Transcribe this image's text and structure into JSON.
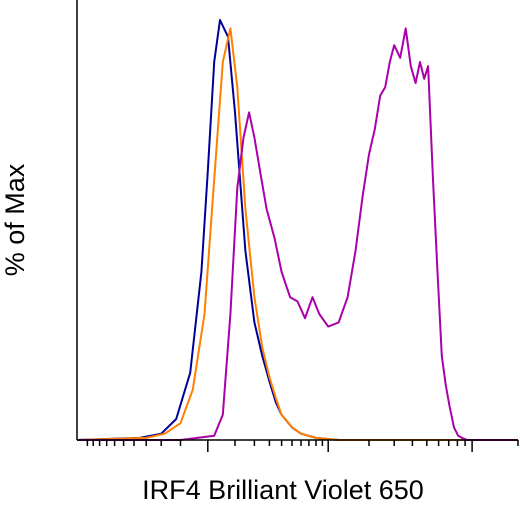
{
  "chart_data": {
    "type": "line",
    "title": "",
    "xlabel": "IRF4 Brilliant Violet 650",
    "ylabel": "% of Max",
    "xscale": "biexponential",
    "ylim": [
      0,
      100
    ],
    "grid": false,
    "legend": "none",
    "x_ticks": {
      "major": [
        0,
        10000,
        100000
      ],
      "minor": [
        -10000,
        -9000,
        -8000,
        -7000,
        -6000,
        -5000,
        -4000,
        -3000,
        -2000,
        -1000,
        1000,
        2000,
        3000,
        4000,
        5000,
        6000,
        7000,
        8000,
        9000,
        20000,
        30000,
        40000,
        50000,
        60000,
        70000,
        80000,
        90000,
        200000
      ]
    },
    "series": [
      {
        "color": "#000099",
        "x": [
          -12000,
          -3500,
          -2000,
          -1200,
          -600,
          -200,
          0,
          200,
          400,
          700,
          1000,
          1500,
          2000,
          2500,
          3000,
          3500,
          4000,
          5000,
          6000,
          8000,
          12000,
          200000
        ],
        "values": [
          0,
          0.5,
          1.5,
          5,
          16,
          40,
          64,
          90,
          100,
          96,
          78,
          45,
          28,
          20,
          14,
          9,
          6,
          3,
          1.5,
          0.5,
          0,
          0
        ]
      },
      {
        "color": "#ff8000",
        "x": [
          -12000,
          -3000,
          -1800,
          -1000,
          -500,
          -100,
          200,
          500,
          800,
          1100,
          1500,
          2000,
          2500,
          3000,
          3500,
          4000,
          5000,
          6000,
          8000,
          12000,
          200000
        ],
        "values": [
          0,
          0.5,
          1.5,
          4,
          12,
          30,
          62,
          90,
          98,
          84,
          55,
          34,
          22,
          15,
          10,
          6,
          3,
          1.5,
          0.5,
          0,
          0
        ]
      },
      {
        "color": "#aa00aa",
        "x": [
          -12000,
          -1000,
          200,
          500,
          800,
          1100,
          1400,
          1700,
          2000,
          2400,
          2800,
          3400,
          4000,
          4800,
          5600,
          6500,
          7500,
          8500,
          10000,
          12000,
          14000,
          16000,
          18000,
          20000,
          22000,
          24000,
          26000,
          28000,
          30000,
          33000,
          36000,
          39000,
          42000,
          45000,
          48000,
          51000,
          55000,
          59000,
          63000,
          67000,
          71000,
          76000,
          81000,
          86000,
          93000,
          100000,
          110000,
          120000,
          200000
        ],
        "values": [
          0,
          0,
          1,
          6,
          30,
          60,
          72,
          78,
          72,
          63,
          55,
          48,
          40,
          34,
          33,
          29,
          34,
          30,
          27,
          28,
          34,
          45,
          58,
          68,
          74,
          82,
          84,
          90,
          94,
          91,
          98,
          89,
          85,
          90,
          86,
          89,
          62,
          40,
          20,
          13,
          8,
          3,
          1,
          0.5,
          0,
          0,
          0,
          0,
          0
        ]
      }
    ]
  }
}
